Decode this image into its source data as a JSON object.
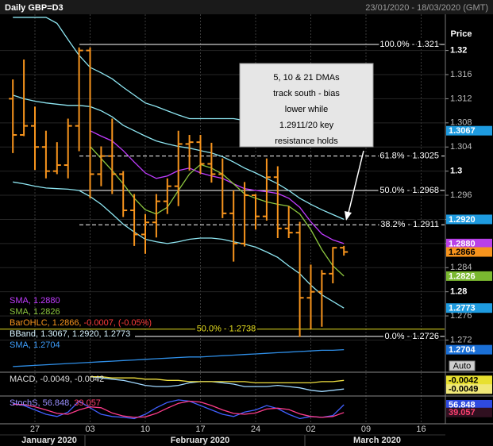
{
  "chart_data": {
    "type": "ohlc",
    "title": "Daily GBP=D3",
    "subtitle": "23/01/2020 - 18/03/2020 (GMT)",
    "y_axis_label": "Price",
    "auto_button": "Auto",
    "grid": true,
    "categories": [
      null,
      null,
      "27",
      null,
      null,
      null,
      null,
      "03",
      null,
      null,
      null,
      null,
      "10",
      null,
      null,
      null,
      null,
      "17",
      null,
      null,
      null,
      null,
      "24",
      null,
      null,
      null,
      null,
      "02",
      null,
      null,
      null,
      null,
      "09",
      null,
      null,
      null,
      null,
      "16",
      null,
      null
    ],
    "months": [
      "January 2020",
      "February 2020",
      "March 2020"
    ],
    "ylim": [
      1.2668,
      1.326
    ],
    "yticks": [
      1.32,
      1.316,
      1.312,
      1.308,
      1.304,
      1.3,
      1.296,
      1.292,
      1.288,
      1.284,
      1.28,
      1.276,
      1.272
    ],
    "ohlc": {
      "color": "#f7941d",
      "open": [
        1.312,
        1.306,
        1.3075,
        1.304,
        1.3,
        1.301,
        1.3075,
        1.32,
        1.2995,
        1.3025,
        1.2995,
        1.2935,
        1.2895,
        1.2915,
        1.295,
        1.2975,
        1.3045,
        1.3048,
        1.3012,
        1.2995,
        1.293,
        1.288,
        1.296,
        1.2925,
        1.299,
        1.2905,
        1.2898,
        1.279,
        1.28,
        1.283,
        1.2873,
        null,
        null,
        null,
        null,
        null,
        null,
        null,
        null,
        null
      ],
      "high": [
        1.3152,
        1.3185,
        1.3107,
        1.3067,
        1.3048,
        1.3087,
        1.3205,
        1.3205,
        1.3041,
        1.3087,
        1.3,
        1.2962,
        1.2929,
        1.2962,
        1.2988,
        1.3067,
        1.306,
        1.306,
        1.3047,
        1.3021,
        1.2968,
        1.2982,
        1.2962,
        1.3021,
        1.3008,
        1.2942,
        1.2916,
        1.2845,
        1.2836,
        1.2874,
        1.2876,
        null,
        null,
        null,
        null,
        null,
        null,
        null,
        null,
        null
      ],
      "low": [
        1.303,
        1.3058,
        1.3002,
        1.2988,
        1.2995,
        1.2988,
        1.3033,
        1.2955,
        1.2975,
        1.2962,
        1.2924,
        1.2876,
        1.2863,
        1.289,
        1.2929,
        1.2942,
        1.3001,
        1.2995,
        1.2981,
        1.2922,
        1.285,
        1.2875,
        1.2903,
        1.2918,
        1.2889,
        1.2889,
        1.2725,
        1.2738,
        1.2742,
        1.2814,
        1.286,
        null,
        null,
        null,
        null,
        null,
        null,
        null,
        null,
        null
      ],
      "close": [
        1.306,
        1.3075,
        1.304,
        1.3,
        1.301,
        1.3075,
        1.32,
        1.2995,
        1.3025,
        1.2995,
        1.2935,
        1.2895,
        1.2915,
        1.295,
        1.2975,
        1.3045,
        1.3048,
        1.3012,
        1.2995,
        1.293,
        1.288,
        1.296,
        1.2925,
        1.299,
        1.2905,
        1.2898,
        1.279,
        1.28,
        1.283,
        1.2873,
        1.2866,
        null,
        null,
        null,
        null,
        null,
        null,
        null,
        null,
        null
      ]
    },
    "lines": [
      {
        "color": "#8ee6f2",
        "values": [
          1.3255,
          1.3255,
          1.3255,
          1.3255,
          1.3245,
          1.3218,
          1.3192,
          1.3172,
          1.3163,
          1.3153,
          1.3139,
          1.3126,
          1.3113,
          1.3107,
          1.31,
          1.3093,
          1.3087,
          1.3087,
          1.3087,
          1.3087,
          1.3087,
          1.3084,
          1.308,
          1.3078,
          1.3076,
          1.3074,
          1.3071,
          1.307,
          1.3068,
          1.3067,
          1.3067,
          null,
          null,
          null,
          null,
          null,
          null,
          null,
          null,
          null
        ]
      },
      {
        "color": "#8ee6f2",
        "values": [
          1.3126,
          1.312,
          1.3116,
          1.3113,
          1.3111,
          1.3109,
          1.3109,
          1.3107,
          1.31,
          1.309,
          1.3076,
          1.3067,
          1.3058,
          1.305,
          1.3045,
          1.3041,
          1.3038,
          1.3034,
          1.303,
          1.3024,
          1.3015,
          1.3005,
          1.2997,
          1.2988,
          1.2979,
          1.2968,
          1.2955,
          1.2945,
          1.2936,
          1.2928,
          1.292,
          null,
          null,
          null,
          null,
          null,
          null,
          null,
          null,
          null
        ]
      },
      {
        "color": "#8ee6f2",
        "values": [
          1.2982,
          1.2979,
          1.2975,
          1.2972,
          1.2971,
          1.297,
          1.2968,
          1.2958,
          1.2945,
          1.2929,
          1.2912,
          1.2899,
          1.2887,
          1.2883,
          1.288,
          1.2883,
          1.2887,
          1.2889,
          1.2889,
          1.2887,
          1.2883,
          1.2879,
          1.2874,
          1.2866,
          1.2857,
          1.2843,
          1.283,
          1.2811,
          1.2795,
          1.2784,
          1.2773,
          null,
          null,
          null,
          null,
          null,
          null,
          null,
          null,
          null
        ]
      },
      {
        "color": "#c13cff",
        "values": [
          null,
          null,
          null,
          null,
          null,
          null,
          null,
          1.3067,
          1.3058,
          1.305,
          1.3034,
          1.3015,
          1.2997,
          1.2988,
          1.2992,
          1.3001,
          1.3005,
          1.2997,
          1.2992,
          1.2988,
          1.2979,
          1.2971,
          1.2968,
          1.2966,
          1.2963,
          1.2955,
          1.294,
          1.2916,
          1.2896,
          1.2886,
          1.288,
          null,
          null,
          null,
          null,
          null,
          null,
          null,
          null,
          null
        ]
      },
      {
        "color": "#8cc63f",
        "values": [
          null,
          null,
          null,
          null,
          null,
          null,
          null,
          1.3041,
          1.3021,
          1.3001,
          1.2979,
          1.2955,
          1.2936,
          1.2929,
          1.294,
          1.2968,
          1.2995,
          1.3011,
          1.3005,
          1.2995,
          1.2979,
          1.2962,
          1.2955,
          1.2949,
          1.2945,
          1.2942,
          1.2929,
          1.2903,
          1.287,
          1.2843,
          1.2826,
          null,
          null,
          null,
          null,
          null,
          null,
          null,
          null,
          null
        ]
      },
      {
        "color": "#2f8fe8",
        "values": [
          1.2676,
          1.2677,
          1.2678,
          1.2679,
          1.268,
          1.2681,
          1.2682,
          1.2683,
          1.2684,
          1.2685,
          1.2686,
          1.2687,
          1.2688,
          1.2689,
          1.269,
          1.2691,
          1.2692,
          1.2692,
          1.2693,
          1.2694,
          1.2695,
          1.2696,
          1.2697,
          1.2698,
          1.2699,
          1.27,
          1.2701,
          1.2702,
          1.2703,
          1.2703,
          1.2704,
          null,
          null,
          null,
          null,
          null,
          null,
          null,
          null,
          null
        ]
      }
    ],
    "levels": [
      {
        "label": "100.0% - 1.321",
        "value": 1.321,
        "dashed": false,
        "color": "#ffffff"
      },
      {
        "label": "61.8% - 1.3025",
        "value": 1.3025,
        "dashed": true,
        "color": "#ffffff"
      },
      {
        "label": "50.0% - 1.2968",
        "value": 1.2968,
        "dashed": false,
        "color": "#ffffff"
      },
      {
        "label": "38.2% - 1.2911",
        "value": 1.2911,
        "dashed": true,
        "color": "#ffffff"
      },
      {
        "label": "0.0% - 1.2726",
        "value": 1.2726,
        "dashed": false,
        "color": "#ffffff"
      },
      {
        "label": "50.0% - 1.2738",
        "value": 1.2738,
        "dashed": false,
        "color": "#e8e020"
      }
    ],
    "annotation": {
      "lines": [
        "5, 10 & 21 DMAs",
        "track south - bias",
        "lower while",
        "1.2911/20 key",
        "resistance holds"
      ]
    },
    "legend": [
      {
        "parts": [
          {
            "text": "SMA, 1.2880",
            "color": "#c13cff"
          }
        ]
      },
      {
        "parts": [
          {
            "text": "SMA, 1.2826",
            "color": "#8cc63f"
          }
        ]
      },
      {
        "parts": [
          {
            "text": "BarOHLC, 1.2866,",
            "color": "#f7941d"
          },
          {
            "text": "-0.0007, (-0.05%)",
            "color": "#ff3b3b"
          }
        ]
      },
      {
        "parts": [
          {
            "text": "BBand, 1.3067, 1.2920, 1.2773",
            "color": "#d8f4ff"
          }
        ]
      },
      {
        "parts": [
          {
            "text": "SMA, 1.2704",
            "color": "#3fa0ff"
          }
        ]
      }
    ],
    "price_tags": [
      {
        "value": 1.3067,
        "color": "#1e9be0",
        "text_color": "#ffffff"
      },
      {
        "value": 1.292,
        "label": "1.2920",
        "color": "#1e9be0",
        "text_color": "#ffffff"
      },
      {
        "value": 1.288,
        "label": "1.2880",
        "color": "#b940e8",
        "text_color": "#ffffff"
      },
      {
        "value": 1.2866,
        "color": "#f7941d",
        "text_color": "#000000"
      },
      {
        "value": 1.2826,
        "color": "#7ab830",
        "text_color": "#ffffff"
      },
      {
        "value": 1.2773,
        "color": "#1e9be0",
        "text_color": "#ffffff"
      },
      {
        "value": 1.2704,
        "color": "#1a6fd6",
        "text_color": "#ffffff"
      }
    ],
    "macd": {
      "type": "line",
      "ylim": [
        -0.0054,
        -0.0036
      ],
      "legend": {
        "parts": [
          {
            "text": "MACD, -0.0049, -0.0042",
            "color": "#dddddd"
          }
        ]
      },
      "series": [
        {
          "color": "#a0d8ff",
          "values": [
            null,
            null,
            null,
            null,
            null,
            null,
            null,
            -0.0039,
            -0.004,
            -0.0041,
            -0.0042,
            -0.0044,
            -0.0046,
            -0.0047,
            -0.0047,
            -0.0046,
            -0.0044,
            -0.0043,
            -0.0043,
            -0.0044,
            -0.0045,
            -0.0047,
            -0.0047,
            -0.0047,
            -0.0046,
            -0.0047,
            -0.0048,
            -0.005,
            -0.0051,
            -0.005,
            -0.0049,
            null,
            null,
            null,
            null,
            null,
            null,
            null,
            null,
            null
          ]
        },
        {
          "color": "#f0e040",
          "values": [
            null,
            null,
            null,
            null,
            null,
            null,
            null,
            -0.0039,
            -0.0039,
            -0.004,
            -0.004,
            -0.004,
            -0.0041,
            -0.0041,
            -0.0042,
            -0.0042,
            -0.0043,
            -0.0043,
            -0.0043,
            -0.0043,
            -0.0043,
            -0.0043,
            -0.0044,
            -0.0044,
            -0.0044,
            -0.0044,
            -0.0044,
            -0.0044,
            -0.0043,
            -0.0043,
            -0.0042,
            null,
            null,
            null,
            null,
            null,
            null,
            null,
            null,
            null
          ]
        }
      ],
      "tags": [
        {
          "value": -0.0042,
          "color": "#e8e030",
          "text_color": "#000000"
        },
        {
          "value": -0.0049,
          "color": "#f0e878",
          "text_color": "#000000"
        }
      ]
    },
    "stoch": {
      "type": "line",
      "ylim": [
        15,
        75
      ],
      "legend": {
        "parts": [
          {
            "text": "StochS, 56.848,",
            "color": "#9a90ff"
          },
          {
            "text": "39.057",
            "color": "#ff4070"
          }
        ]
      },
      "series": [
        {
          "color": "#4060ff",
          "values": [
            60,
            55,
            45,
            35,
            30,
            40,
            65,
            50,
            35,
            30,
            28,
            25,
            35,
            50,
            62,
            68,
            65,
            55,
            45,
            35,
            30,
            40,
            45,
            55,
            48,
            35,
            25,
            30,
            28,
            32,
            56.848,
            null,
            null,
            null,
            null,
            null,
            null,
            null,
            null,
            null
          ]
        },
        {
          "color": "#ff3c8c",
          "values": [
            58,
            57,
            52,
            45,
            37,
            35,
            45,
            52,
            50,
            38,
            31,
            28,
            29,
            37,
            49,
            60,
            65,
            63,
            55,
            45,
            37,
            35,
            38,
            47,
            49,
            46,
            36,
            30,
            28,
            30,
            39.057,
            null,
            null,
            null,
            null,
            null,
            null,
            null,
            null,
            null
          ]
        }
      ],
      "tags": [
        {
          "value": 56.848,
          "color": "#2f4ae0",
          "text_color": "#ffffff"
        },
        {
          "value": 39.057,
          "color": "#301020",
          "text_color": "#ff4070"
        }
      ]
    }
  }
}
